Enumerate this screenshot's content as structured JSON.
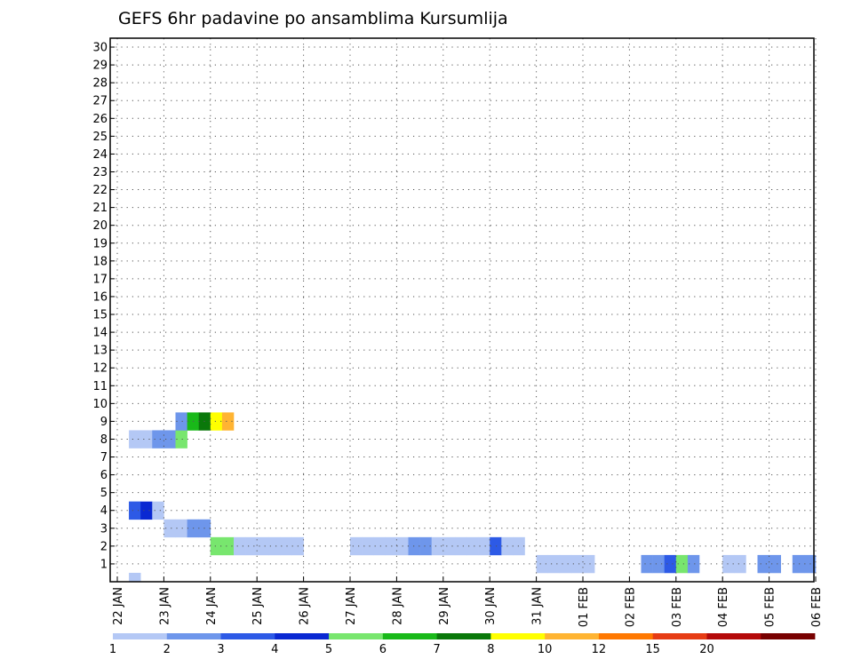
{
  "chart_data": {
    "type": "heatmap",
    "title": "GEFS 6hr padavine po ansamblima Kursumlija",
    "xlabel": "",
    "ylabel": "",
    "x_tick_labels": [
      "22 JAN",
      "23 JAN",
      "24 JAN",
      "25 JAN",
      "26 JAN",
      "27 JAN",
      "28 JAN",
      "29 JAN",
      "30 JAN",
      "31 JAN",
      "01 FEB",
      "02 FEB",
      "03 FEB",
      "04 FEB",
      "05 FEB",
      "06 FEB"
    ],
    "x_range_steps": [
      0,
      60
    ],
    "steps_per_day": 4,
    "y_tick_labels": [
      "1",
      "2",
      "3",
      "4",
      "5",
      "6",
      "7",
      "8",
      "9",
      "10",
      "11",
      "12",
      "13",
      "14",
      "15",
      "16",
      "17",
      "18",
      "19",
      "20",
      "21",
      "22",
      "23",
      "24",
      "25",
      "26",
      "27",
      "28",
      "29",
      "30"
    ],
    "y_range_members": [
      0,
      30
    ],
    "grid": "dotted",
    "legend": {
      "placement": "bottom",
      "bins": [
        {
          "color": "#b4c8f5",
          "label": "1"
        },
        {
          "color": "#6e96eb",
          "label": "2"
        },
        {
          "color": "#2d5ae6",
          "label": "3"
        },
        {
          "color": "#0a28d2",
          "label": "4"
        },
        {
          "color": "#78e66e",
          "label": "5"
        },
        {
          "color": "#19b919",
          "label": "6"
        },
        {
          "color": "#0a780a",
          "label": "7"
        },
        {
          "color": "#ffff00",
          "label": "8"
        },
        {
          "color": "#ffb432",
          "label": "10"
        },
        {
          "color": "#ff7800",
          "label": "12"
        },
        {
          "color": "#e63c14",
          "label": "15"
        },
        {
          "color": "#b40a0a",
          "label": "20"
        },
        {
          "color": "#780000",
          "label": ""
        }
      ]
    },
    "cells": [
      [
        0,
        1,
        1
      ],
      [
        4,
        1,
        2
      ],
      [
        4,
        1,
        3
      ],
      [
        4,
        2,
        4
      ],
      [
        4,
        3,
        1
      ],
      [
        8,
        1,
        1
      ],
      [
        8,
        2,
        1
      ],
      [
        8,
        3,
        2
      ],
      [
        8,
        4,
        2
      ],
      [
        8,
        5,
        5
      ],
      [
        9,
        5,
        2
      ],
      [
        9,
        6,
        6
      ],
      [
        9,
        7,
        7
      ],
      [
        9,
        8,
        8
      ],
      [
        9,
        9,
        9
      ],
      [
        3,
        4,
        1
      ],
      [
        3,
        5,
        1
      ],
      [
        3,
        6,
        2
      ],
      [
        3,
        7,
        2
      ],
      [
        2,
        8,
        5
      ],
      [
        2,
        9,
        5
      ],
      [
        2,
        10,
        1
      ],
      [
        2,
        11,
        1
      ],
      [
        2,
        12,
        1
      ],
      [
        2,
        13,
        1
      ],
      [
        2,
        14,
        1
      ],
      [
        2,
        15,
        1
      ],
      [
        2,
        20,
        1
      ],
      [
        2,
        21,
        1
      ],
      [
        2,
        22,
        1
      ],
      [
        2,
        23,
        1
      ],
      [
        2,
        24,
        1
      ],
      [
        2,
        25,
        2
      ],
      [
        2,
        26,
        2
      ],
      [
        2,
        27,
        1
      ],
      [
        2,
        28,
        1
      ],
      [
        2,
        29,
        1
      ],
      [
        2,
        30,
        1
      ],
      [
        2,
        31,
        1
      ],
      [
        2,
        32,
        3
      ],
      [
        2,
        33,
        1
      ],
      [
        2,
        34,
        1
      ],
      [
        1,
        36,
        1
      ],
      [
        1,
        37,
        1
      ],
      [
        1,
        38,
        1
      ],
      [
        1,
        39,
        1
      ],
      [
        1,
        40,
        1
      ],
      [
        1,
        45,
        2
      ],
      [
        1,
        46,
        2
      ],
      [
        1,
        47,
        3
      ],
      [
        1,
        48,
        5
      ],
      [
        1,
        49,
        2
      ],
      [
        1,
        52,
        1
      ],
      [
        1,
        53,
        1
      ],
      [
        1,
        55,
        2
      ],
      [
        1,
        56,
        2
      ],
      [
        1,
        58,
        2
      ],
      [
        1,
        59,
        2
      ]
    ]
  },
  "colorbar_tick_labels": [
    "1",
    "2",
    "3",
    "4",
    "5",
    "6",
    "7",
    "8",
    "10",
    "12",
    "15",
    "20"
  ]
}
